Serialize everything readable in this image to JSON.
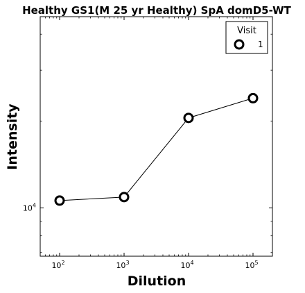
{
  "chart_data": {
    "type": "line",
    "title": "Healthy GS1(M 25 yr Healthy) SpA domD5-WT",
    "xlabel": "Dilution",
    "ylabel": "Intensity",
    "xscale": "log",
    "yscale": "log",
    "xlim": [
      50,
      200000
    ],
    "ylim": [
      6800,
      46000
    ],
    "x_ticks": [
      {
        "value": 100,
        "base": "10",
        "exp": "2"
      },
      {
        "value": 1000,
        "base": "10",
        "exp": "3"
      },
      {
        "value": 10000,
        "base": "10",
        "exp": "4"
      },
      {
        "value": 100000,
        "base": "10",
        "exp": "5"
      }
    ],
    "y_ticks": [
      {
        "value": 10000,
        "base": "10",
        "exp": "4"
      }
    ],
    "grid": false,
    "legend": {
      "title": "Visit",
      "placement": "top-right"
    },
    "series": [
      {
        "name": "1",
        "color": "#000000",
        "marker": "open-circle",
        "x": [
          100,
          1000,
          10000,
          100000
        ],
        "y": [
          10600,
          10900,
          20500,
          24000
        ]
      }
    ]
  }
}
